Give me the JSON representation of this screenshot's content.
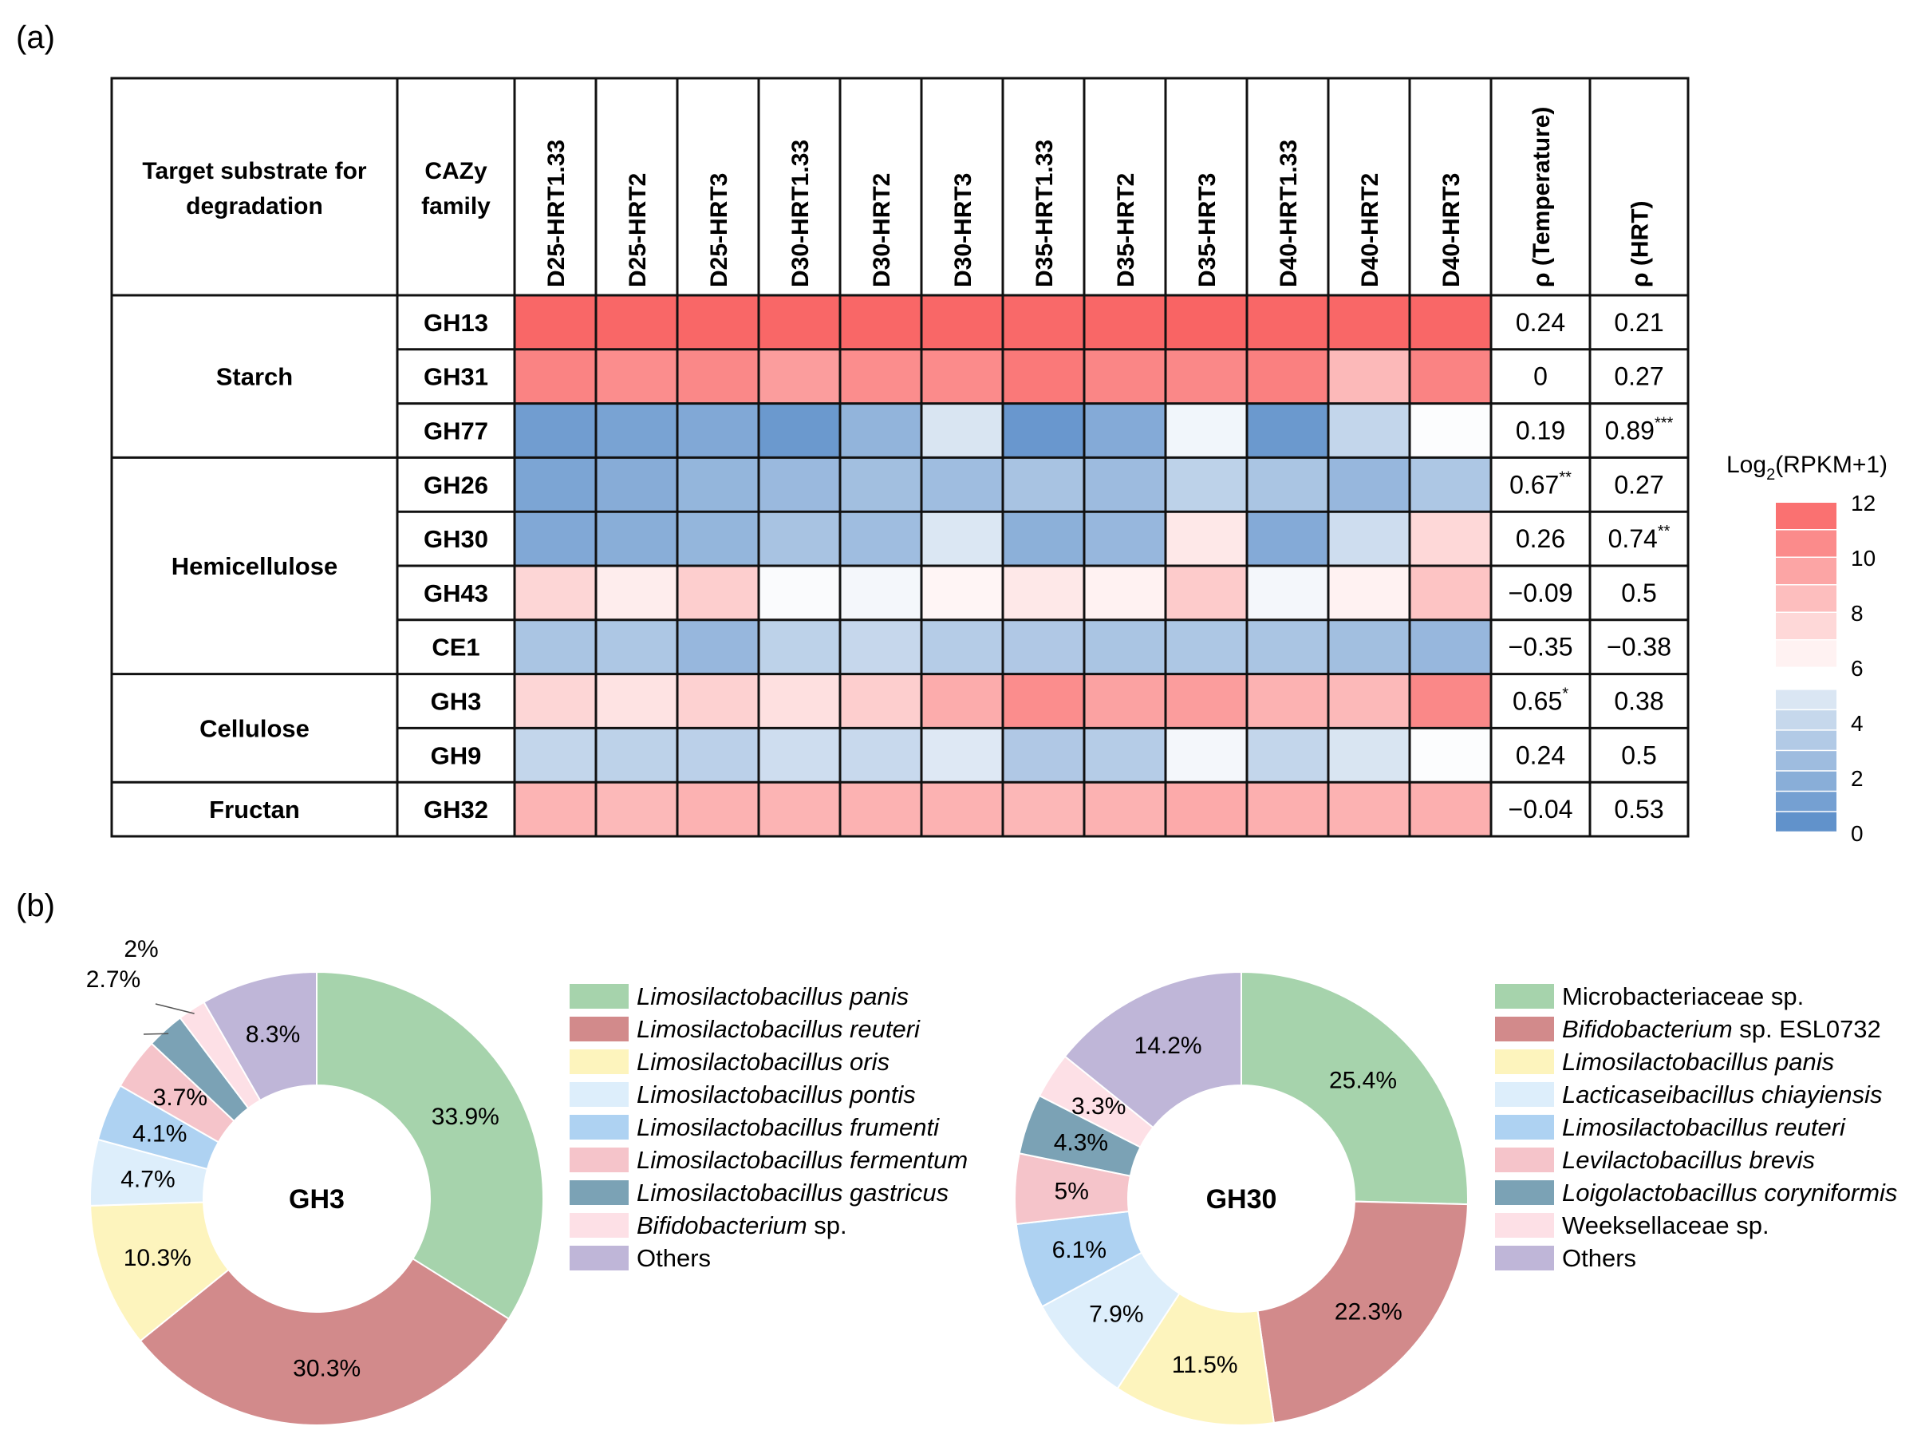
{
  "figure": {
    "panel_a_label": "(a)",
    "panel_b_label": "(b)"
  },
  "colors": {
    "heat_high": "#f96464",
    "heat_mid": "#ffffff",
    "heat_low": "#5b8ec9",
    "pie": [
      "#a6d3ac",
      "#d28a8b",
      "#fdf4bd",
      "#ddeefb",
      "#aed2f2",
      "#f5c4ca",
      "#7ba2b5",
      "#fde0e6",
      "#bfb6d8"
    ]
  },
  "chart_data": [
    {
      "type": "heatmap",
      "header_substrate": "Target substrate for degradation",
      "header_family": "CAZy family",
      "columns": [
        "D25-HRT1.33",
        "D25-HRT2",
        "D25-HRT3",
        "D30-HRT1.33",
        "D30-HRT2",
        "D30-HRT3",
        "D35-HRT1.33",
        "D35-HRT2",
        "D35-HRT3",
        "D40-HRT1.33",
        "D40-HRT2",
        "D40-HRT3"
      ],
      "rho_columns": [
        "ρ (Temperature)",
        "ρ (HRT)"
      ],
      "groups": [
        {
          "name": "Starch",
          "rows": [
            "GH13",
            "GH31",
            "GH77"
          ]
        },
        {
          "name": "Hemicellulose",
          "rows": [
            "GH26",
            "GH30",
            "GH43",
            "CE1"
          ]
        },
        {
          "name": "Cellulose",
          "rows": [
            "GH3",
            "GH9"
          ]
        },
        {
          "name": "Fructan",
          "rows": [
            "GH32"
          ]
        }
      ],
      "rows": [
        {
          "family": "GH13",
          "values": [
            11.9,
            11.9,
            11.9,
            11.9,
            11.9,
            11.9,
            11.8,
            11.9,
            12.0,
            11.9,
            11.9,
            11.9
          ],
          "rho_temp": "0.24",
          "rho_temp_sig": "",
          "rho_hrt": "0.21",
          "rho_hrt_sig": ""
        },
        {
          "family": "GH31",
          "values": [
            10.8,
            10.4,
            10.6,
            9.8,
            10.4,
            10.5,
            11.2,
            10.7,
            10.6,
            10.9,
            8.7,
            10.8
          ],
          "rho_temp": "0",
          "rho_temp_sig": "",
          "rho_hrt": "0.27",
          "rho_hrt_sig": ""
        },
        {
          "family": "GH77",
          "values": [
            0.8,
            1.1,
            1.4,
            0.6,
            2.0,
            4.6,
            0.5,
            1.5,
            5.5,
            0.6,
            3.8,
            5.9
          ],
          "rho_temp": "0.19",
          "rho_temp_sig": "",
          "rho_hrt": "0.89",
          "rho_hrt_sig": "***"
        },
        {
          "family": "GH26",
          "values": [
            1.2,
            1.6,
            2.1,
            2.3,
            2.6,
            2.5,
            2.8,
            2.4,
            3.6,
            2.9,
            2.2,
            3.0
          ],
          "rho_temp": "0.67",
          "rho_temp_sig": "**",
          "rho_hrt": "0.27",
          "rho_hrt_sig": ""
        },
        {
          "family": "GH30",
          "values": [
            1.4,
            1.7,
            2.1,
            2.8,
            2.5,
            4.7,
            1.8,
            2.2,
            6.9,
            1.5,
            4.2,
            7.5
          ],
          "rho_temp": "0.26",
          "rho_temp_sig": "",
          "rho_hrt": "0.74",
          "rho_hrt_sig": "**"
        },
        {
          "family": "GH43",
          "values": [
            7.6,
            6.7,
            7.9,
            5.8,
            5.6,
            6.4,
            6.9,
            6.5,
            8.0,
            5.6,
            6.5,
            8.3
          ],
          "rho_temp": "−0.09",
          "rho_temp_sig": "",
          "rho_hrt": "0.5",
          "rho_hrt_sig": ""
        },
        {
          "family": "CE1",
          "values": [
            2.9,
            3.0,
            2.2,
            3.6,
            3.9,
            3.3,
            3.1,
            2.9,
            3.0,
            2.9,
            2.6,
            2.2
          ],
          "rho_temp": "−0.35",
          "rho_temp_sig": "",
          "rho_hrt": "−0.38",
          "rho_hrt_sig": ""
        },
        {
          "family": "GH3",
          "values": [
            7.6,
            7.1,
            7.8,
            7.2,
            7.9,
            9.2,
            10.4,
            9.6,
            9.8,
            9.0,
            8.7,
            10.6
          ],
          "rho_temp": "0.65",
          "rho_temp_sig": "*",
          "rho_hrt": "0.38",
          "rho_hrt_sig": ""
        },
        {
          "family": "GH9",
          "values": [
            3.8,
            3.6,
            3.5,
            4.2,
            4.0,
            4.8,
            3.1,
            3.3,
            5.6,
            3.8,
            4.6,
            5.9
          ],
          "rho_temp": "0.24",
          "rho_temp_sig": "",
          "rho_hrt": "0.5",
          "rho_hrt_sig": ""
        },
        {
          "family": "GH32",
          "values": [
            8.9,
            8.7,
            9.0,
            8.9,
            9.0,
            9.0,
            8.8,
            9.0,
            9.3,
            9.1,
            9.0,
            9.1
          ],
          "rho_temp": "−0.04",
          "rho_temp_sig": "",
          "rho_hrt": "0.53",
          "rho_hrt_sig": ""
        }
      ],
      "colorbar": {
        "title_pre": "Log",
        "title_sub": "2",
        "title_post": "(RPKM+1)",
        "range": [
          0,
          12
        ],
        "ticks": [
          "12",
          "10",
          "8",
          "6",
          "4",
          "2",
          "0"
        ]
      }
    },
    {
      "type": "pie",
      "center_label": "GH3",
      "slices": [
        {
          "name": "Limosilactobacillus panis",
          "value": 33.9,
          "label": "33.9%",
          "italic": true
        },
        {
          "name": "Limosilactobacillus reuteri",
          "value": 30.3,
          "label": "30.3%",
          "italic": true
        },
        {
          "name": "Limosilactobacillus oris",
          "value": 10.3,
          "label": "10.3%",
          "italic": true
        },
        {
          "name": "Limosilactobacillus pontis",
          "value": 4.7,
          "label": "4.7%",
          "italic": true
        },
        {
          "name": "Limosilactobacillus frumenti",
          "value": 4.1,
          "label": "4.1%",
          "italic": true
        },
        {
          "name": "Limosilactobacillus fermentum",
          "value": 3.7,
          "label": "3.7%",
          "italic": true
        },
        {
          "name": "Limosilactobacillus gastricus",
          "value": 2.7,
          "label": "2.7%",
          "italic": true
        },
        {
          "name": "Bifidobacterium",
          "name_suffix": " sp.",
          "value": 2,
          "label": "2%",
          "italic": true
        },
        {
          "name": "Others",
          "value": 8.3,
          "label": "8.3%",
          "italic": false
        }
      ]
    },
    {
      "type": "pie",
      "center_label": "GH30",
      "slices": [
        {
          "name": "Microbacteriaceae sp.",
          "value": 25.4,
          "label": "25.4%",
          "italic": false
        },
        {
          "name": "Bifidobacterium",
          "name_suffix": " sp. ESL0732",
          "value": 22.3,
          "label": "22.3%",
          "italic": true
        },
        {
          "name": "Limosilactobacillus panis",
          "value": 11.5,
          "label": "11.5%",
          "italic": true
        },
        {
          "name": "Lacticaseibacillus chiayiensis",
          "value": 7.9,
          "label": "7.9%",
          "italic": true
        },
        {
          "name": "Limosilactobacillus reuteri",
          "value": 6.1,
          "label": "6.1%",
          "italic": true
        },
        {
          "name": "Levilactobacillus brevis",
          "value": 5,
          "label": "5%",
          "italic": true
        },
        {
          "name": "Loigolactobacillus coryniformis",
          "value": 4.3,
          "label": "4.3%",
          "italic": true
        },
        {
          "name": "Weeksellaceae sp.",
          "value": 3.3,
          "label": "3.3%",
          "italic": false
        },
        {
          "name": "Others",
          "value": 14.2,
          "label": "14.2%",
          "italic": false
        }
      ]
    }
  ]
}
